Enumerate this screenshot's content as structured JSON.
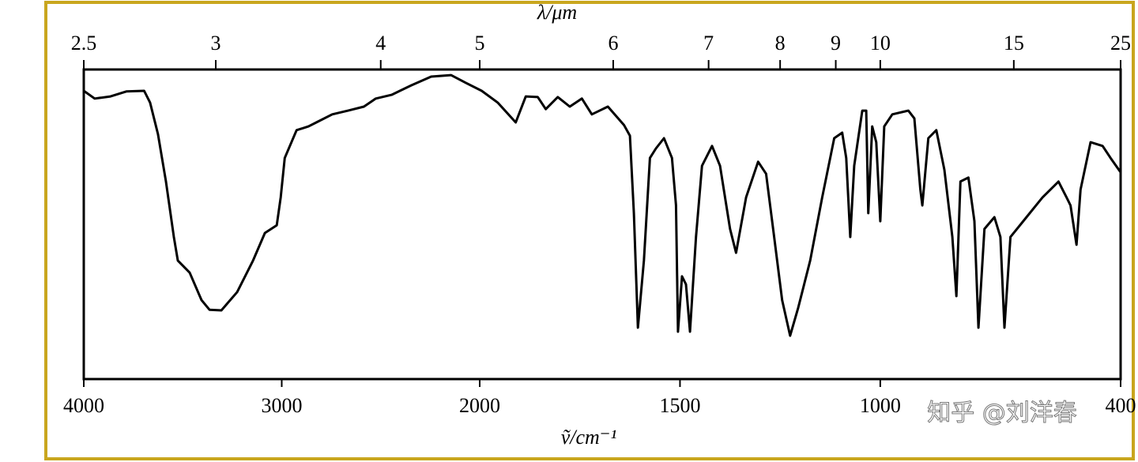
{
  "chart_data": {
    "type": "line",
    "x_label": "ṽ/cm⁻¹",
    "x2_label": "λ/μm",
    "watermark": "知乎 @刘洋春",
    "color": "#000000",
    "frame_color": "#c9a61e",
    "xlim": [
      4000,
      400
    ],
    "xscale_break": 2000,
    "xticks": [
      4000,
      3000,
      2000,
      1500,
      1000,
      400
    ],
    "x2ticks": [
      2.5,
      3,
      4,
      5,
      6,
      7,
      8,
      9,
      10,
      15,
      25
    ],
    "ylim": [
      0,
      100
    ],
    "x": [
      4000,
      3945,
      3865,
      3785,
      3695,
      3665,
      3625,
      3585,
      3545,
      3525,
      3465,
      3405,
      3365,
      3305,
      3225,
      3145,
      3085,
      3025,
      3005,
      2985,
      2925,
      2865,
      2825,
      2745,
      2665,
      2585,
      2525,
      2445,
      2345,
      2245,
      2145,
      2070,
      1995,
      1955,
      1910,
      1885,
      1855,
      1835,
      1805,
      1775,
      1745,
      1720,
      1680,
      1640,
      1625,
      1615,
      1605,
      1590,
      1575,
      1560,
      1540,
      1520,
      1510,
      1505,
      1495,
      1485,
      1475,
      1460,
      1445,
      1420,
      1400,
      1375,
      1360,
      1335,
      1305,
      1285,
      1265,
      1245,
      1225,
      1205,
      1175,
      1145,
      1115,
      1095,
      1085,
      1075,
      1065,
      1045,
      1035,
      1030,
      1020,
      1010,
      1000,
      990,
      970,
      930,
      915,
      900,
      895,
      880,
      860,
      840,
      820,
      810,
      800,
      780,
      765,
      755,
      740,
      715,
      700,
      690,
      675,
      635,
      595,
      555,
      535,
      525,
      510,
      500,
      475,
      445,
      425,
      400
    ],
    "values": [
      93.1,
      90.6,
      91.3,
      92.9,
      93.1,
      89.3,
      79.1,
      63.8,
      45.9,
      38.3,
      34.4,
      25.5,
      22.4,
      22.2,
      28.1,
      38.3,
      47.2,
      49.7,
      58.7,
      71.4,
      80.4,
      81.6,
      82.9,
      85.5,
      86.7,
      88.0,
      90.6,
      91.8,
      94.9,
      97.7,
      98.2,
      95.7,
      93.1,
      89.3,
      82.9,
      91.3,
      91.1,
      87.2,
      91.1,
      88.0,
      90.6,
      85.5,
      88.0,
      82.1,
      78.6,
      53.6,
      16.6,
      38.3,
      71.4,
      74.5,
      77.8,
      71.4,
      56.1,
      15.3,
      33.2,
      30.6,
      15.3,
      45.9,
      68.9,
      75.3,
      68.9,
      48.5,
      40.8,
      58.7,
      70.2,
      66.3,
      45.9,
      25.5,
      14.0,
      23.0,
      38.3,
      58.7,
      77.8,
      79.6,
      71.4,
      45.9,
      68.9,
      86.7,
      86.7,
      53.6,
      81.6,
      76.5,
      51.0,
      81.6,
      85.5,
      86.7,
      84.2,
      61.2,
      56.1,
      77.8,
      80.4,
      67.6,
      45.9,
      26.8,
      63.8,
      65.1,
      51.0,
      16.6,
      48.5,
      52.3,
      45.9,
      16.6,
      45.9,
      52.3,
      58.7,
      63.8,
      58.7,
      56.1,
      43.4,
      61.2,
      76.5,
      75.3,
      71.4,
      66.8
    ]
  }
}
